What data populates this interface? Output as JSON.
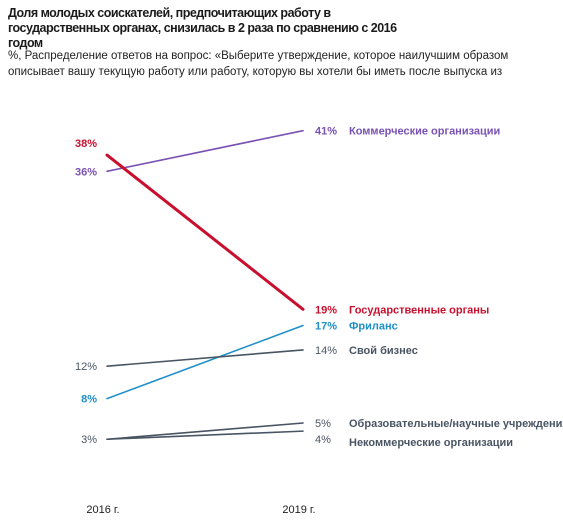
{
  "title": "Доля молодых соискателей, предпочитающих работу в государственных органах, снизилась в 2 раза по сравнению с 2016 годом",
  "subtitle": "%, Распределение ответов на вопрос: «Выберите утверждение, которое наилучшим образом описывает вашу текущую работу или работу, которую вы хотели бы иметь после выпуска из",
  "chart_data": {
    "type": "line",
    "x": [
      "2016 г.",
      "2019 г."
    ],
    "ylim": [
      0,
      45
    ],
    "grid": false,
    "series": [
      {
        "name": "Коммерческие организации",
        "values": [
          36,
          41
        ],
        "color": "#7a52b3",
        "bold": false,
        "start_label": "36%",
        "end_label": "41%",
        "label_color": "#7a52b3"
      },
      {
        "name": "Государственные органы",
        "values": [
          38,
          19
        ],
        "color": "#c8102e",
        "bold": true,
        "start_label": "38%",
        "end_label": "19%",
        "label_color": "#c8102e"
      },
      {
        "name": "Фриланс",
        "values": [
          8,
          17
        ],
        "color": "#1f8fc7",
        "bold": false,
        "start_label": "8%",
        "end_label": "17%",
        "label_color": "#1f8fc7"
      },
      {
        "name": "Свой бизнес",
        "values": [
          12,
          14
        ],
        "color": "#4a5563",
        "bold": false,
        "start_label": "12%",
        "end_label": "14%",
        "label_color": "#4a5563"
      },
      {
        "name": "Образовательные/научные учреждения",
        "values": [
          3,
          5
        ],
        "color": "#4a5563",
        "bold": false,
        "start_label": "3%",
        "end_label": "5%",
        "label_color": "#4a5563"
      },
      {
        "name": "Некоммерческие организации",
        "values": [
          3,
          4
        ],
        "color": "#4a5563",
        "bold": false,
        "start_label": "",
        "end_label": "4%",
        "label_color": "#4a5563"
      }
    ]
  }
}
